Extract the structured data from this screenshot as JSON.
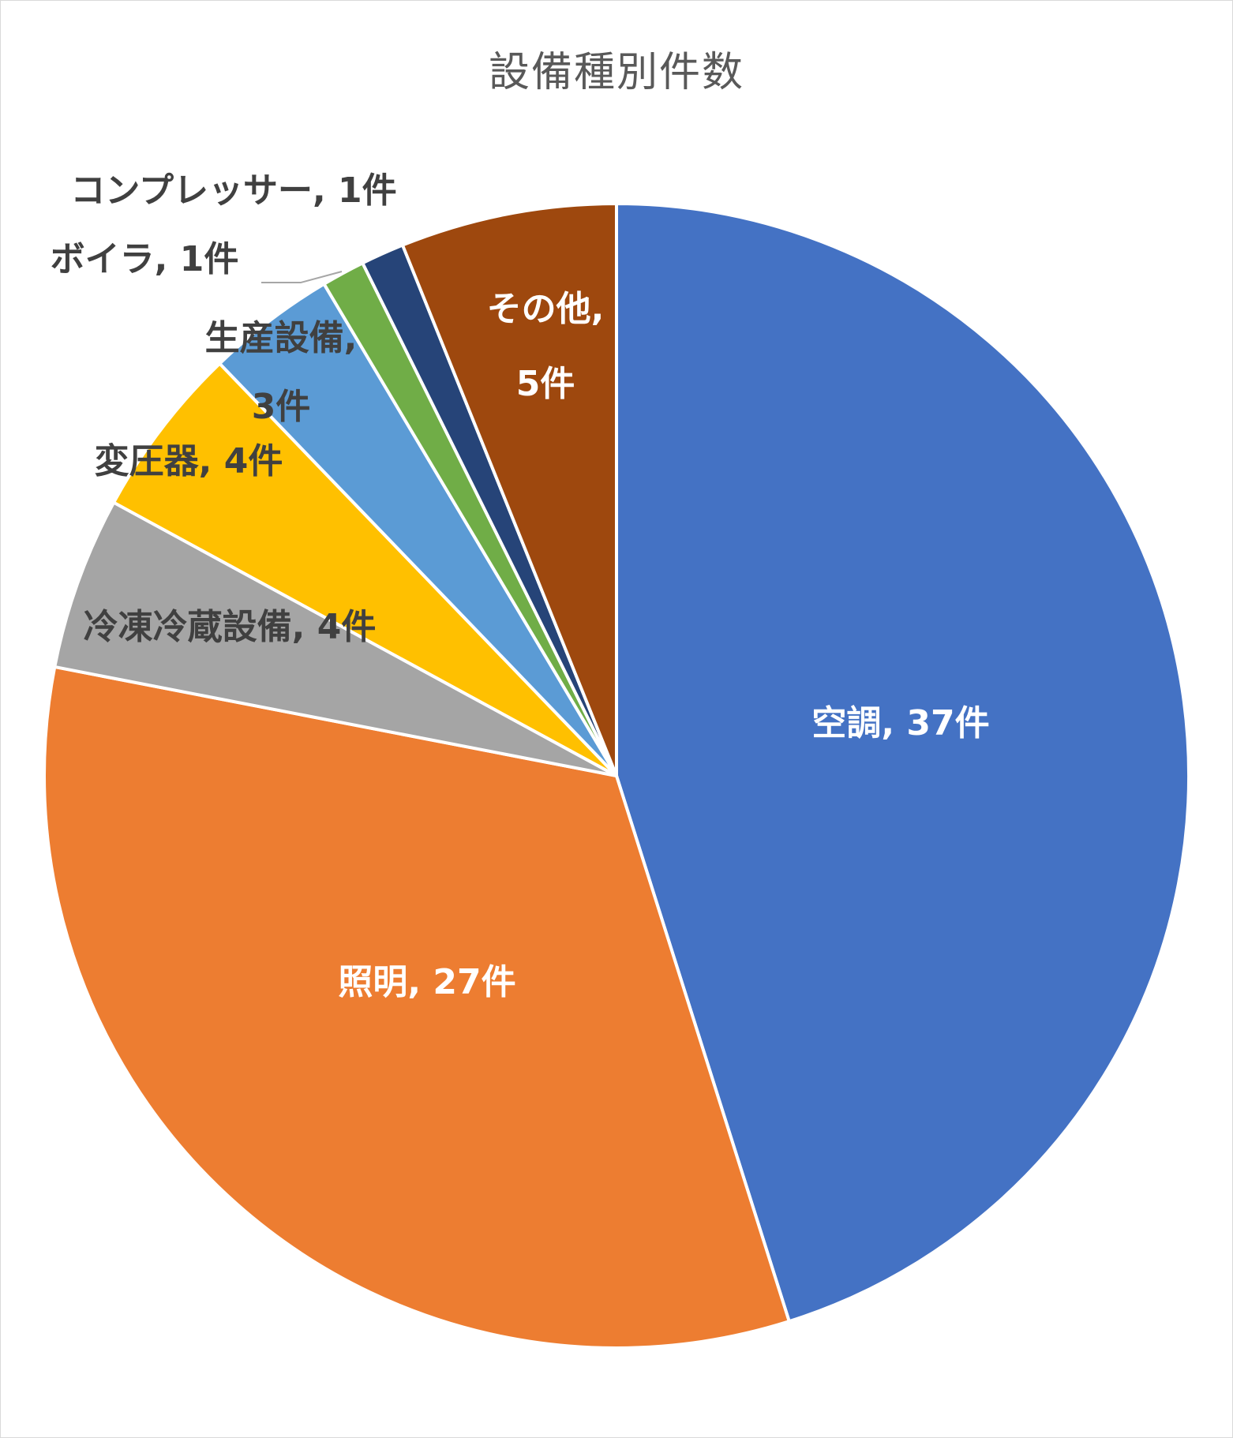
{
  "chart_data": {
    "type": "pie",
    "title": "設備種別件数",
    "slices": [
      {
        "name": "空調",
        "value": 37,
        "label": "空調, 37件",
        "color": "#4472c4",
        "label_color": "#ffffff"
      },
      {
        "name": "照明",
        "value": 27,
        "label": "照明, 27件",
        "color": "#ed7d31",
        "label_color": "#ffffff"
      },
      {
        "name": "冷凍冷蔵設備",
        "value": 4,
        "label": "冷凍冷蔵設備, 4件",
        "color": "#a5a5a5",
        "label_color": "#404040"
      },
      {
        "name": "変圧器",
        "value": 4,
        "label": "変圧器, 4件",
        "color": "#ffc000",
        "label_color": "#404040"
      },
      {
        "name": "生産設備",
        "value": 3,
        "label_lines": [
          "生産設備,",
          "3件"
        ],
        "color": "#5b9bd5",
        "label_color": "#404040"
      },
      {
        "name": "ボイラ",
        "value": 1,
        "label": "ボイラ, 1件",
        "color": "#70ad47",
        "label_color": "#404040"
      },
      {
        "name": "コンプレッサー",
        "value": 1,
        "label": "コンプレッサー, 1件",
        "color": "#264478",
        "label_color": "#404040"
      },
      {
        "name": "その他",
        "value": 5,
        "label_lines": [
          "その他,",
          "5件"
        ],
        "color": "#9e480e",
        "label_color": "#ffffff"
      }
    ]
  }
}
